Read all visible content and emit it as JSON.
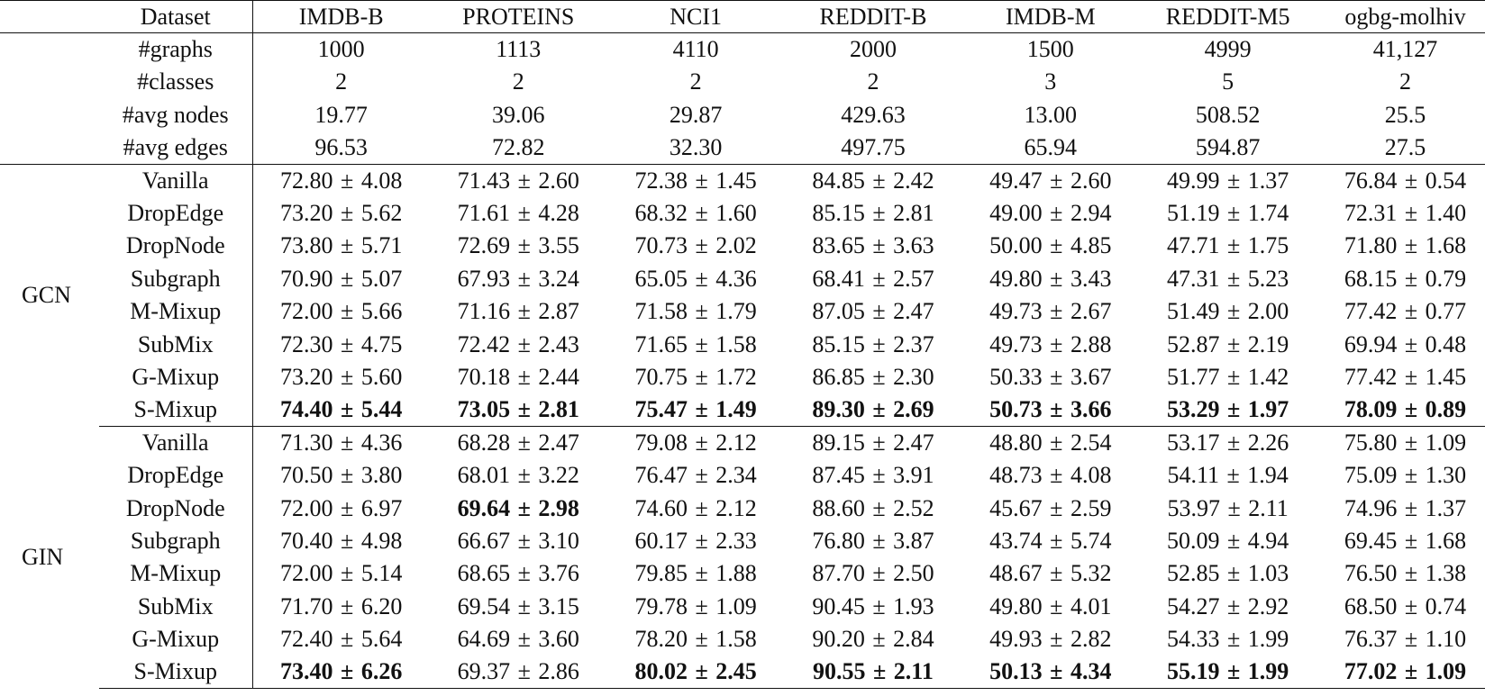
{
  "header": {
    "first_label": "Dataset",
    "datasets": [
      "IMDB-B",
      "PROTEINS",
      "NCI1",
      "REDDIT-B",
      "IMDB-M",
      "REDDIT-M5",
      "ogbg-molhiv"
    ]
  },
  "stats": [
    {
      "label": "#graphs",
      "values": [
        "1000",
        "1113",
        "4110",
        "2000",
        "1500",
        "4999",
        "41,127"
      ]
    },
    {
      "label": "#classes",
      "values": [
        "2",
        "2",
        "2",
        "2",
        "3",
        "5",
        "2"
      ]
    },
    {
      "label": "#avg nodes",
      "values": [
        "19.77",
        "39.06",
        "29.87",
        "429.63",
        "13.00",
        "508.52",
        "25.5"
      ]
    },
    {
      "label": "#avg edges",
      "values": [
        "96.53",
        "72.82",
        "32.30",
        "497.75",
        "65.94",
        "594.87",
        "27.5"
      ]
    }
  ],
  "groups": [
    {
      "name": "GCN",
      "rows": [
        {
          "method": "Vanilla",
          "cells": [
            {
              "mean": "72.80",
              "std": "4.08"
            },
            {
              "mean": "71.43",
              "std": "2.60"
            },
            {
              "mean": "72.38",
              "std": "1.45"
            },
            {
              "mean": "84.85",
              "std": "2.42"
            },
            {
              "mean": "49.47",
              "std": "2.60"
            },
            {
              "mean": "49.99",
              "std": "1.37"
            },
            {
              "mean": "76.84",
              "std": "0.54"
            }
          ]
        },
        {
          "method": "DropEdge",
          "cells": [
            {
              "mean": "73.20",
              "std": "5.62"
            },
            {
              "mean": "71.61",
              "std": "4.28"
            },
            {
              "mean": "68.32",
              "std": "1.60"
            },
            {
              "mean": "85.15",
              "std": "2.81"
            },
            {
              "mean": "49.00",
              "std": "2.94"
            },
            {
              "mean": "51.19",
              "std": "1.74"
            },
            {
              "mean": "72.31",
              "std": "1.40"
            }
          ]
        },
        {
          "method": "DropNode",
          "cells": [
            {
              "mean": "73.80",
              "std": "5.71"
            },
            {
              "mean": "72.69",
              "std": "3.55"
            },
            {
              "mean": "70.73",
              "std": "2.02"
            },
            {
              "mean": "83.65",
              "std": "3.63"
            },
            {
              "mean": "50.00",
              "std": "4.85"
            },
            {
              "mean": "47.71",
              "std": "1.75"
            },
            {
              "mean": "71.80",
              "std": "1.68"
            }
          ]
        },
        {
          "method": "Subgraph",
          "cells": [
            {
              "mean": "70.90",
              "std": "5.07"
            },
            {
              "mean": "67.93",
              "std": "3.24"
            },
            {
              "mean": "65.05",
              "std": "4.36"
            },
            {
              "mean": "68.41",
              "std": "2.57"
            },
            {
              "mean": "49.80",
              "std": "3.43"
            },
            {
              "mean": "47.31",
              "std": "5.23"
            },
            {
              "mean": "68.15",
              "std": "0.79"
            }
          ]
        },
        {
          "method": "M-Mixup",
          "cells": [
            {
              "mean": "72.00",
              "std": "5.66"
            },
            {
              "mean": "71.16",
              "std": "2.87"
            },
            {
              "mean": "71.58",
              "std": "1.79"
            },
            {
              "mean": "87.05",
              "std": "2.47"
            },
            {
              "mean": "49.73",
              "std": "2.67"
            },
            {
              "mean": "51.49",
              "std": "2.00"
            },
            {
              "mean": "77.42",
              "std": "0.77"
            }
          ]
        },
        {
          "method": "SubMix",
          "cells": [
            {
              "mean": "72.30",
              "std": "4.75"
            },
            {
              "mean": "72.42",
              "std": "2.43"
            },
            {
              "mean": "71.65",
              "std": "1.58"
            },
            {
              "mean": "85.15",
              "std": "2.37"
            },
            {
              "mean": "49.73",
              "std": "2.88"
            },
            {
              "mean": "52.87",
              "std": "2.19"
            },
            {
              "mean": "69.94",
              "std": "0.48"
            }
          ]
        },
        {
          "method": "G-Mixup",
          "cells": [
            {
              "mean": "73.20",
              "std": "5.60"
            },
            {
              "mean": "70.18",
              "std": "2.44"
            },
            {
              "mean": "70.75",
              "std": "1.72"
            },
            {
              "mean": "86.85",
              "std": "2.30"
            },
            {
              "mean": "50.33",
              "std": "3.67"
            },
            {
              "mean": "51.77",
              "std": "1.42"
            },
            {
              "mean": "77.42",
              "std": "1.45"
            }
          ]
        },
        {
          "method": "S-Mixup",
          "cells": [
            {
              "mean": "74.40",
              "std": "5.44",
              "bold": true
            },
            {
              "mean": "73.05",
              "std": "2.81",
              "bold": true
            },
            {
              "mean": "75.47",
              "std": "1.49",
              "bold": true
            },
            {
              "mean": "89.30",
              "std": "2.69",
              "bold": true
            },
            {
              "mean": "50.73",
              "std": "3.66",
              "bold": true
            },
            {
              "mean": "53.29",
              "std": "1.97",
              "bold": true
            },
            {
              "mean": "78.09",
              "std": "0.89",
              "bold": true
            }
          ]
        }
      ]
    },
    {
      "name": "GIN",
      "rows": [
        {
          "method": "Vanilla",
          "cells": [
            {
              "mean": "71.30",
              "std": "4.36"
            },
            {
              "mean": "68.28",
              "std": "2.47"
            },
            {
              "mean": "79.08",
              "std": "2.12"
            },
            {
              "mean": "89.15",
              "std": "2.47"
            },
            {
              "mean": "48.80",
              "std": "2.54"
            },
            {
              "mean": "53.17",
              "std": "2.26"
            },
            {
              "mean": "75.80",
              "std": "1.09"
            }
          ]
        },
        {
          "method": "DropEdge",
          "cells": [
            {
              "mean": "70.50",
              "std": "3.80"
            },
            {
              "mean": "68.01",
              "std": "3.22"
            },
            {
              "mean": "76.47",
              "std": "2.34"
            },
            {
              "mean": "87.45",
              "std": "3.91"
            },
            {
              "mean": "48.73",
              "std": "4.08"
            },
            {
              "mean": "54.11",
              "std": "1.94"
            },
            {
              "mean": "75.09",
              "std": "1.30"
            }
          ]
        },
        {
          "method": "DropNode",
          "cells": [
            {
              "mean": "72.00",
              "std": "6.97"
            },
            {
              "mean": "69.64",
              "std": "2.98",
              "bold": true
            },
            {
              "mean": "74.60",
              "std": "2.12"
            },
            {
              "mean": "88.60",
              "std": "2.52"
            },
            {
              "mean": "45.67",
              "std": "2.59"
            },
            {
              "mean": "53.97",
              "std": "2.11"
            },
            {
              "mean": "74.96",
              "std": "1.37"
            }
          ]
        },
        {
          "method": "Subgraph",
          "cells": [
            {
              "mean": "70.40",
              "std": "4.98"
            },
            {
              "mean": "66.67",
              "std": "3.10"
            },
            {
              "mean": "60.17",
              "std": "2.33"
            },
            {
              "mean": "76.80",
              "std": "3.87"
            },
            {
              "mean": "43.74",
              "std": "5.74"
            },
            {
              "mean": "50.09",
              "std": "4.94"
            },
            {
              "mean": "69.45",
              "std": "1.68"
            }
          ]
        },
        {
          "method": "M-Mixup",
          "cells": [
            {
              "mean": "72.00",
              "std": "5.14"
            },
            {
              "mean": "68.65",
              "std": "3.76"
            },
            {
              "mean": "79.85",
              "std": "1.88"
            },
            {
              "mean": "87.70",
              "std": "2.50"
            },
            {
              "mean": "48.67",
              "std": "5.32"
            },
            {
              "mean": "52.85",
              "std": "1.03"
            },
            {
              "mean": "76.50",
              "std": "1.38"
            }
          ]
        },
        {
          "method": "SubMix",
          "cells": [
            {
              "mean": "71.70",
              "std": "6.20"
            },
            {
              "mean": "69.54",
              "std": "3.15"
            },
            {
              "mean": "79.78",
              "std": "1.09"
            },
            {
              "mean": "90.45",
              "std": "1.93"
            },
            {
              "mean": "49.80",
              "std": "4.01"
            },
            {
              "mean": "54.27",
              "std": "2.92"
            },
            {
              "mean": "68.50",
              "std": "0.74"
            }
          ]
        },
        {
          "method": "G-Mixup",
          "cells": [
            {
              "mean": "72.40",
              "std": "5.64"
            },
            {
              "mean": "64.69",
              "std": "3.60"
            },
            {
              "mean": "78.20",
              "std": "1.58"
            },
            {
              "mean": "90.20",
              "std": "2.84"
            },
            {
              "mean": "49.93",
              "std": "2.82"
            },
            {
              "mean": "54.33",
              "std": "1.99"
            },
            {
              "mean": "76.37",
              "std": "1.10"
            }
          ]
        },
        {
          "method": "S-Mixup",
          "cells": [
            {
              "mean": "73.40",
              "std": "6.26",
              "bold": true
            },
            {
              "mean": "69.37",
              "std": "2.86"
            },
            {
              "mean": "80.02",
              "std": "2.45",
              "bold": true
            },
            {
              "mean": "90.55",
              "std": "2.11",
              "bold": true
            },
            {
              "mean": "50.13",
              "std": "4.34",
              "bold": true
            },
            {
              "mean": "55.19",
              "std": "1.99",
              "bold": true
            },
            {
              "mean": "77.02",
              "std": "1.09",
              "bold": true
            }
          ]
        }
      ]
    }
  ]
}
